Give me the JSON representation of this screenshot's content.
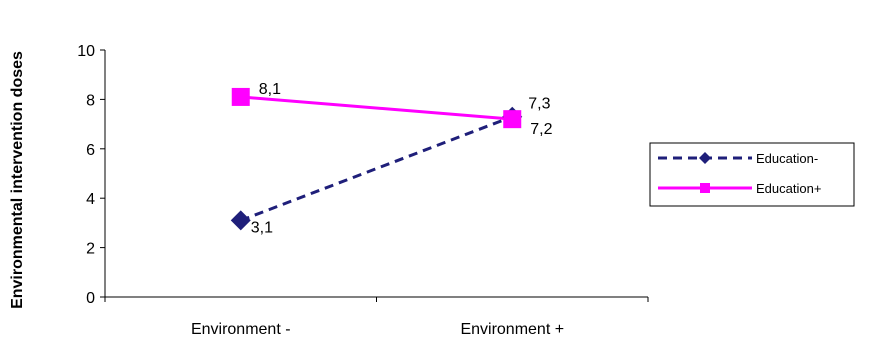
{
  "chart_data": {
    "type": "line",
    "title": "",
    "xlabel": "",
    "ylabel": "Environmental intervention doses",
    "categories": [
      "Environment -",
      "Environment +"
    ],
    "ylim": [
      0,
      10
    ],
    "yticks": [
      0,
      2,
      4,
      6,
      8,
      10
    ],
    "grid": false,
    "legend_position": "right",
    "series": [
      {
        "name": "Education-",
        "values": [
          3.1,
          7.3
        ],
        "labels": [
          "3,1",
          "7,3"
        ],
        "color": "#1f1f7a",
        "marker": "diamond",
        "line_style": "dashed"
      },
      {
        "name": "Education+",
        "values": [
          8.1,
          7.2
        ],
        "labels": [
          "8,1",
          "7,2"
        ],
        "color": "#ff00ff",
        "marker": "square",
        "line_style": "solid"
      }
    ]
  }
}
